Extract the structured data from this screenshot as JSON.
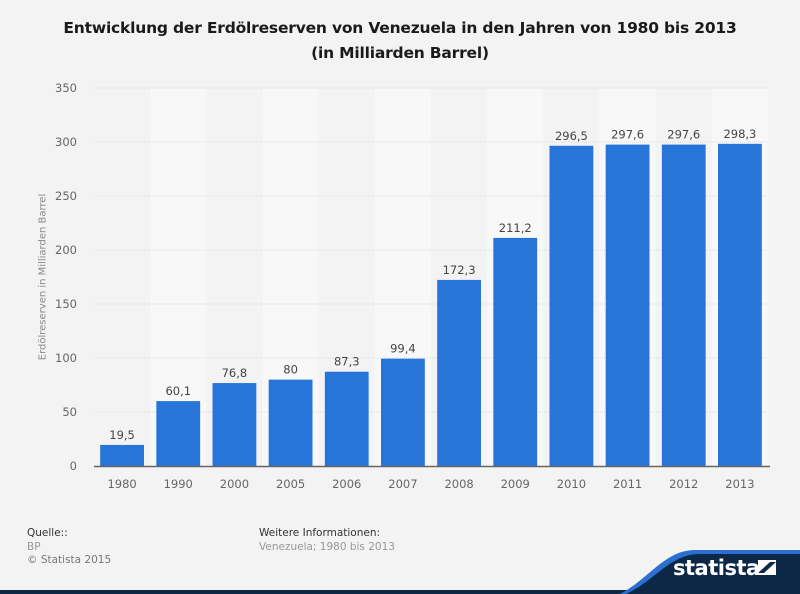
{
  "title": {
    "line1": "Entwicklung der Erdölreserven von Venezuela in den Jahren von 1980 bis 2013",
    "line2": "(in Milliarden Barrel)"
  },
  "footer": {
    "source_label": "Quelle::",
    "source_value": "BP",
    "copyright": "© Statista 2015",
    "info_label": "Weitere Informationen:",
    "info_value": "Venezuela; 1980 bis 2013"
  },
  "brand": {
    "name": "statista",
    "icon": "statista-logo-icon"
  },
  "colors": {
    "bar": "#2775d9",
    "background": "#f3f3f3",
    "band": "#f8f8f8",
    "brand_dark": "#0d2846",
    "brand_accent": "#2b6fd1"
  },
  "chart_data": {
    "type": "bar",
    "title": "Entwicklung der Erdölreserven von Venezuela in den Jahren von 1980 bis 2013 (in Milliarden Barrel)",
    "xlabel": "",
    "ylabel": "Erdölreserven in Milliarden Barrel",
    "categories": [
      "1980",
      "1990",
      "2000",
      "2005",
      "2006",
      "2007",
      "2008",
      "2009",
      "2010",
      "2011",
      "2012",
      "2013"
    ],
    "values": [
      19.5,
      60.1,
      76.8,
      80,
      87.3,
      99.4,
      172.3,
      211.2,
      296.5,
      297.6,
      297.6,
      298.3
    ],
    "value_labels": [
      "19,5",
      "60,1",
      "76,8",
      "80",
      "87,3",
      "99,4",
      "172,3",
      "211,2",
      "296,5",
      "297,6",
      "297,6",
      "298,3"
    ],
    "ylim": [
      0,
      350
    ],
    "yticks": [
      0,
      50,
      100,
      150,
      200,
      250,
      300,
      350
    ],
    "grid": true,
    "legend": "none"
  }
}
